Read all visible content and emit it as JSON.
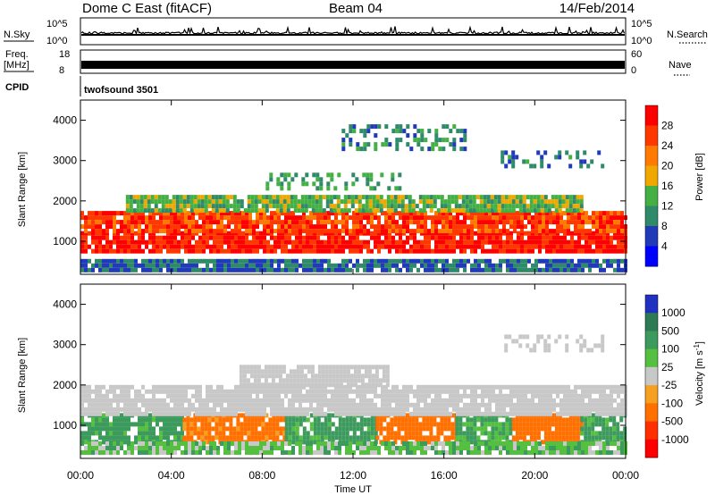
{
  "header": {
    "title_left": "Dome C East (fitACF)",
    "title_center": "Beam 04",
    "title_right": "14/Feb/2014"
  },
  "status_panels": {
    "nsky_label": "N.Sky",
    "nsky_ticks": [
      "10^5",
      "10^0"
    ],
    "nsearch_label": "N.Search",
    "nsearch_ticks": [
      "10^5",
      "10^0"
    ],
    "freq_label": "Freq.",
    "freq_unit": "[MHz]",
    "freq_ticks": [
      "18",
      "8"
    ],
    "nave_label": "Nave",
    "nave_ticks": [
      "60",
      "0"
    ],
    "cpid_label": "CPID",
    "cpid_value": "twofsound 3501"
  },
  "chart_data": [
    {
      "type": "heatmap",
      "name": "power-panel",
      "ylabel": "Slant Range [km]",
      "xlabel": "Time UT",
      "x_ticks": [
        "00:00",
        "04:00",
        "08:00",
        "12:00",
        "16:00",
        "20:00",
        "00:00"
      ],
      "xlim_hours": [
        0,
        24
      ],
      "y_ticks": [
        1000,
        2000,
        3000,
        4000
      ],
      "ylim": [
        180,
        4500
      ],
      "colorbar_label": "Power [dB]",
      "colorbar_ticks": [
        "4",
        "8",
        "12",
        "16",
        "20",
        "24",
        "28"
      ],
      "colorbar_range": [
        0,
        32
      ],
      "colors": [
        "#0000ff",
        "#203ab8",
        "#2f8a6a",
        "#44b044",
        "#f0a800",
        "#ff7a00",
        "#ff3800",
        "#ff0000"
      ],
      "bands": [
        {
          "t": [
            0.0,
            24.0
          ],
          "r": [
            700,
            1250
          ],
          "value": 29
        },
        {
          "t": [
            0.0,
            24.0
          ],
          "r": [
            1250,
            1750
          ],
          "value": 26
        },
        {
          "t": [
            2.0,
            22.0
          ],
          "r": [
            1750,
            2150
          ],
          "value": 14
        },
        {
          "t": [
            0.0,
            24.0
          ],
          "r": [
            320,
            560
          ],
          "value": 8
        },
        {
          "t": [
            11.5,
            17.0
          ],
          "r": [
            3300,
            3900
          ],
          "value": 10
        },
        {
          "t": [
            18.5,
            23.0
          ],
          "r": [
            2900,
            3250
          ],
          "value": 9
        },
        {
          "t": [
            8.0,
            14.0
          ],
          "r": [
            2300,
            2700
          ],
          "value": 12
        }
      ]
    },
    {
      "type": "heatmap",
      "name": "velocity-panel",
      "ylabel": "Slant Range [km]",
      "xlabel": "Time UT",
      "x_ticks": [
        "00:00",
        "04:00",
        "08:00",
        "12:00",
        "16:00",
        "20:00",
        "00:00"
      ],
      "xlim_hours": [
        0,
        24
      ],
      "y_ticks": [
        1000,
        2000,
        3000,
        4000
      ],
      "ylim": [
        180,
        4500
      ],
      "colorbar_label": "Velocity [m s^-1]",
      "colorbar_ticks": [
        "1000",
        "500",
        "100",
        "25",
        "-25",
        "-100",
        "-500",
        "-1000"
      ],
      "colors": [
        "#2030c0",
        "#2e7a55",
        "#3c9a5c",
        "#55c040",
        "#c8c8c8",
        "#f5a020",
        "#ff7000",
        "#ff3000",
        "#ff0000"
      ],
      "bands": [
        {
          "t": [
            0.0,
            4.5
          ],
          "r": [
            600,
            1300
          ],
          "value": 150
        },
        {
          "t": [
            4.5,
            9.0
          ],
          "r": [
            600,
            1300
          ],
          "value": -150
        },
        {
          "t": [
            9.0,
            13.0
          ],
          "r": [
            600,
            1300
          ],
          "value": 150
        },
        {
          "t": [
            13.0,
            16.5
          ],
          "r": [
            600,
            1300
          ],
          "value": -200
        },
        {
          "t": [
            16.5,
            19.0
          ],
          "r": [
            600,
            1300
          ],
          "value": 120
        },
        {
          "t": [
            19.0,
            22.0
          ],
          "r": [
            600,
            1300
          ],
          "value": -180
        },
        {
          "t": [
            22.0,
            24.0
          ],
          "r": [
            600,
            1300
          ],
          "value": 150
        },
        {
          "t": [
            0.0,
            24.0
          ],
          "r": [
            1300,
            2000
          ],
          "value": 0
        },
        {
          "t": [
            7.0,
            13.5
          ],
          "r": [
            2000,
            2500
          ],
          "value": 0
        },
        {
          "t": [
            0.0,
            24.0
          ],
          "r": [
            320,
            600
          ],
          "value": 60
        },
        {
          "t": [
            18.5,
            23.0
          ],
          "r": [
            2900,
            3250
          ],
          "value": 0
        }
      ]
    }
  ]
}
